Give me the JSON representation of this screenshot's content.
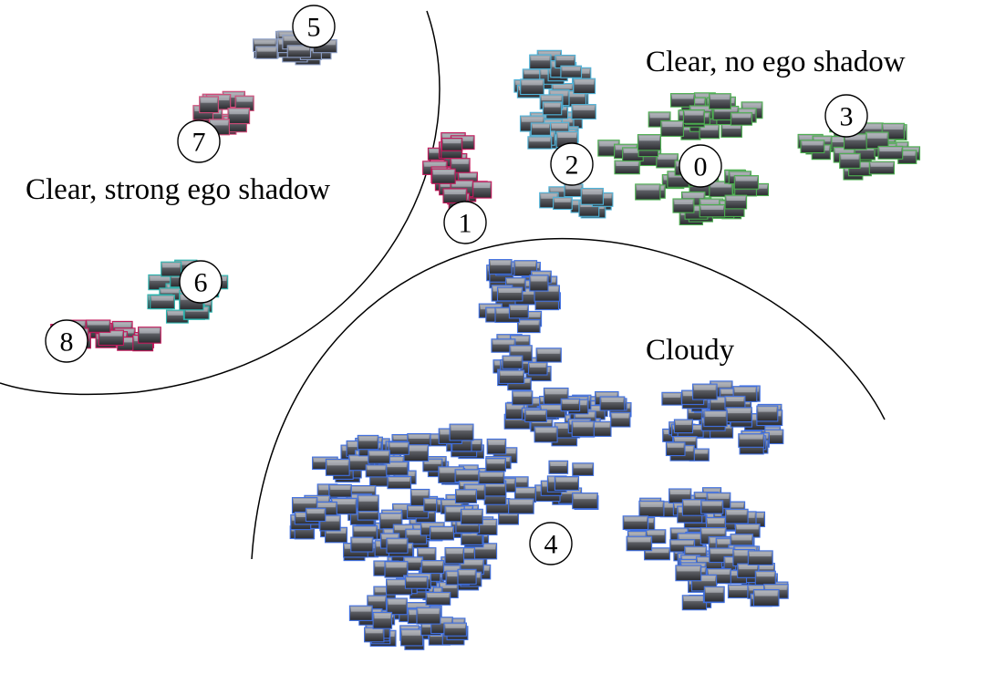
{
  "figure": {
    "regions": [
      {
        "id": "clear-strong-shadow",
        "label": "Clear, strong ego shadow"
      },
      {
        "id": "clear-no-shadow",
        "label": "Clear, no ego shadow"
      },
      {
        "id": "cloudy",
        "label": "Cloudy"
      }
    ],
    "clusters": [
      {
        "id": "0",
        "label": "0",
        "region": "clear-no-shadow",
        "color": "#4caf50"
      },
      {
        "id": "1",
        "label": "1",
        "region": "clear-no-shadow",
        "color": "#c2185b"
      },
      {
        "id": "2",
        "label": "2",
        "region": "clear-no-shadow",
        "color": "#4fb3d9"
      },
      {
        "id": "3",
        "label": "3",
        "region": "clear-no-shadow",
        "color": "#4caf50"
      },
      {
        "id": "4",
        "label": "4",
        "region": "cloudy",
        "color": "#3f6fe0"
      },
      {
        "id": "5",
        "label": "5",
        "region": "clear-strong-shadow",
        "color": "#8ea0c8"
      },
      {
        "id": "6",
        "label": "6",
        "region": "clear-strong-shadow",
        "color": "#2bb5b0"
      },
      {
        "id": "7",
        "label": "7",
        "region": "clear-strong-shadow",
        "color": "#d14b7a"
      },
      {
        "id": "8",
        "label": "8",
        "region": "clear-strong-shadow",
        "color": "#c2185b"
      }
    ]
  }
}
